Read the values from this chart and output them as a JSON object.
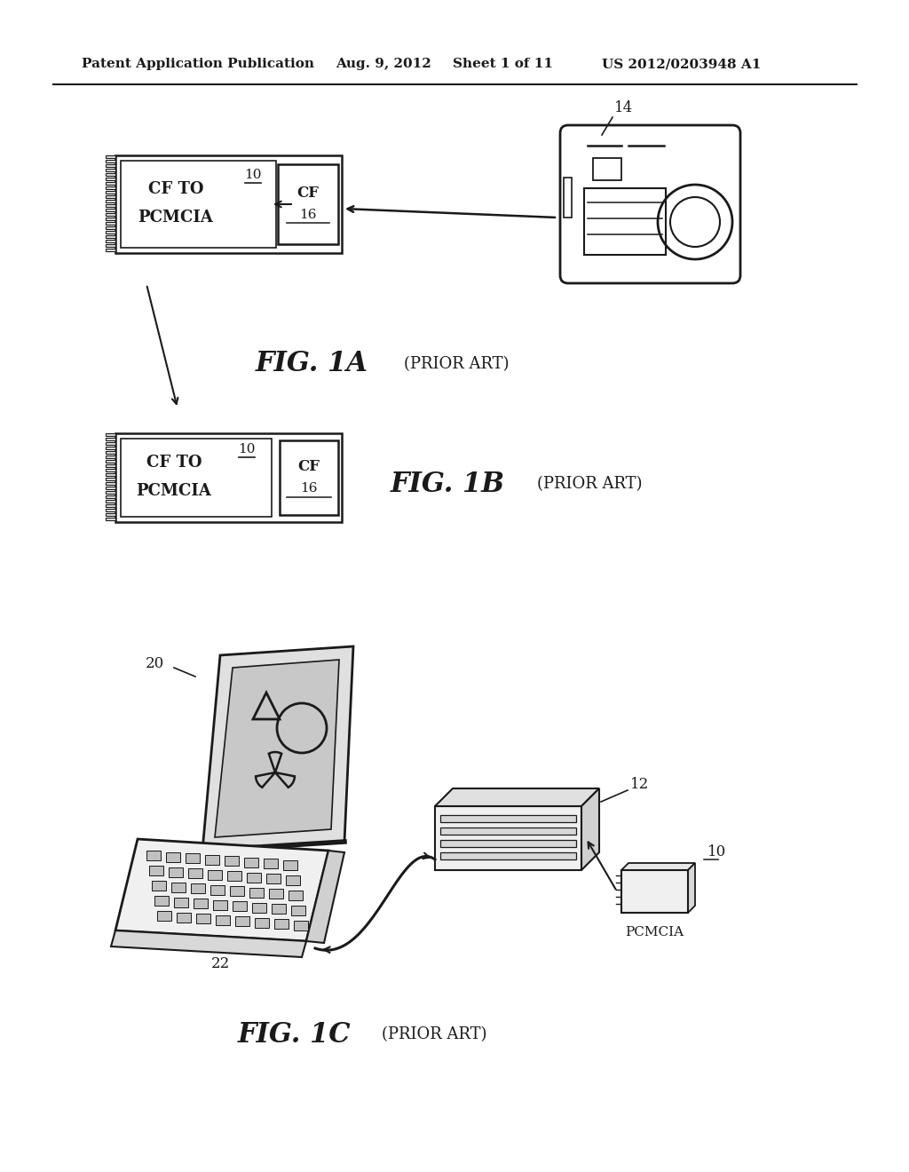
{
  "bg_color": "#ffffff",
  "header_text": "Patent Application Publication",
  "header_date": "Aug. 9, 2012",
  "header_sheet": "Sheet 1 of 11",
  "header_patent": "US 2012/0203948 A1",
  "fig1a_label": "FIG. 1A",
  "fig1a_prior": "(PRIOR ART)",
  "fig1b_label": "FIG. 1B",
  "fig1b_prior": "(PRIOR ART)",
  "fig1c_label": "FIG. 1C",
  "fig1c_prior": "(PRIOR ART)",
  "label_10": "10",
  "label_12": "12",
  "label_14": "14",
  "label_16": "16",
  "label_20": "20",
  "label_22": "22",
  "label_pcmcia": "PCMCIA",
  "cf_line1": "CF TO",
  "cf_line2": "PCMCIA",
  "cf_text": "CF",
  "lc": "#1a1a1a",
  "tc": "#1a1a1a"
}
